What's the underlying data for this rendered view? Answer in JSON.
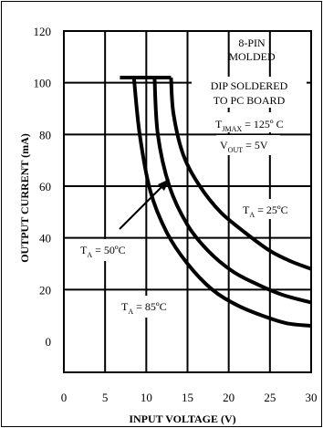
{
  "chart_data": {
    "type": "line",
    "xlabel": "INPUT VOLTAGE (V)",
    "ylabel": "OUTPUT CURRENT (mA)",
    "xlim": [
      0,
      30
    ],
    "ylim": [
      -12,
      120
    ],
    "x_ticks": [
      "0",
      "5",
      "10",
      "15",
      "20",
      "25",
      "30"
    ],
    "y_ticks": [
      "0",
      "20",
      "40",
      "60",
      "80",
      "100",
      "120"
    ],
    "grid": true,
    "series": [
      {
        "name": "TA = 85ºC",
        "x": [
          8.5,
          9.2,
          10.5,
          12.5,
          15,
          18,
          21,
          24,
          27,
          30
        ],
        "y": [
          102,
          80,
          58,
          42,
          30,
          20,
          14,
          10,
          7,
          6
        ]
      },
      {
        "name": "TA = 50ºC",
        "x": [
          11,
          11.4,
          12.8,
          15,
          17.5,
          20.5,
          23.5,
          26.5,
          30
        ],
        "y": [
          102,
          80,
          60,
          45,
          35,
          27,
          22,
          18,
          15
        ]
      },
      {
        "name": "TA = 25ºC",
        "x": [
          13,
          13.3,
          14.5,
          16.5,
          19,
          22,
          25,
          27.5,
          30
        ],
        "y": [
          102,
          88,
          72,
          60,
          50,
          42,
          35,
          31,
          28
        ]
      }
    ],
    "limit_line": {
      "x": [
        6.8,
        13
      ],
      "y": [
        102,
        102
      ]
    },
    "annotations": {
      "package_l1": "8-PIN",
      "package_l2": "MOLDED",
      "mount_l1": "DIP SOLDERED",
      "mount_l2": "TO PC BOARD",
      "tjmax": {
        "main": "T",
        "sub": "JMAX",
        "rest": " = 125º C"
      },
      "vout": {
        "main": "V",
        "sub": "OUT",
        "rest": " = 5V"
      },
      "ta25": {
        "main": "T",
        "sub": "A",
        "rest": " = 25ºC"
      },
      "ta50": {
        "main": "T",
        "sub": "A",
        "rest": " = 50ºC"
      },
      "ta85": {
        "main": "T",
        "sub": "A",
        "rest": " = 85ºC"
      }
    }
  }
}
